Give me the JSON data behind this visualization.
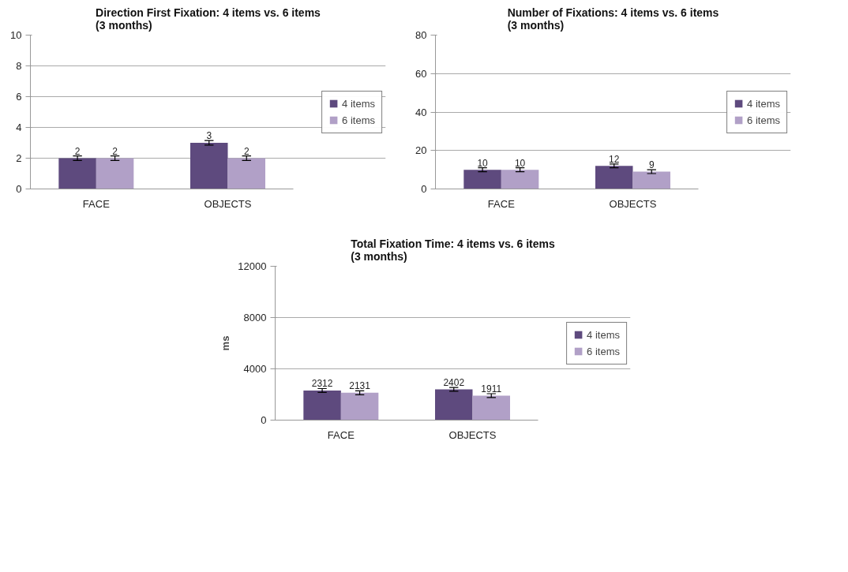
{
  "chart_data": [
    {
      "type": "bar",
      "title": "Direction First Fixation: 4 items vs. 6 items\n(3 months)",
      "categories": [
        "FACE",
        "OBJECTS"
      ],
      "ylim": [
        0,
        10
      ],
      "yticks": [
        0,
        2,
        4,
        6,
        8,
        10
      ],
      "grid": "y",
      "legend": "right",
      "data_labels": true,
      "series": [
        {
          "name": "4 items",
          "color": "#5e4a7e",
          "values": [
            2,
            3
          ],
          "errors": [
            0.15,
            0.15
          ]
        },
        {
          "name": "6 items",
          "color": "#b1a0c7",
          "values": [
            2,
            2
          ],
          "errors": [
            0.15,
            0.15
          ]
        }
      ]
    },
    {
      "type": "bar",
      "title": "Number of Fixations: 4 items vs. 6 items\n(3 months)",
      "categories": [
        "FACE",
        "OBJECTS"
      ],
      "ylim": [
        0,
        80
      ],
      "yticks": [
        0,
        20,
        40,
        60,
        80
      ],
      "grid": "y",
      "legend": "right",
      "data_labels": true,
      "series": [
        {
          "name": "4 items",
          "color": "#5e4a7e",
          "values": [
            10,
            12
          ],
          "errors": [
            1,
            1
          ]
        },
        {
          "name": "6 items",
          "color": "#b1a0c7",
          "values": [
            10,
            9
          ],
          "errors": [
            1,
            1
          ]
        }
      ]
    },
    {
      "type": "bar",
      "title": "Total Fixation Time: 4 items vs. 6 items\n(3 months)",
      "ylabel": "ms",
      "categories": [
        "FACE",
        "OBJECTS"
      ],
      "ylim": [
        0,
        12000
      ],
      "yticks": [
        0,
        4000,
        8000,
        12000
      ],
      "grid": "y",
      "legend": "right",
      "data_labels": true,
      "series": [
        {
          "name": "4 items",
          "color": "#5e4a7e",
          "values": [
            2312,
            2402
          ],
          "errors": [
            150,
            150
          ]
        },
        {
          "name": "6 items",
          "color": "#b1a0c7",
          "values": [
            2131,
            1911
          ],
          "errors": [
            150,
            150
          ]
        }
      ]
    }
  ]
}
